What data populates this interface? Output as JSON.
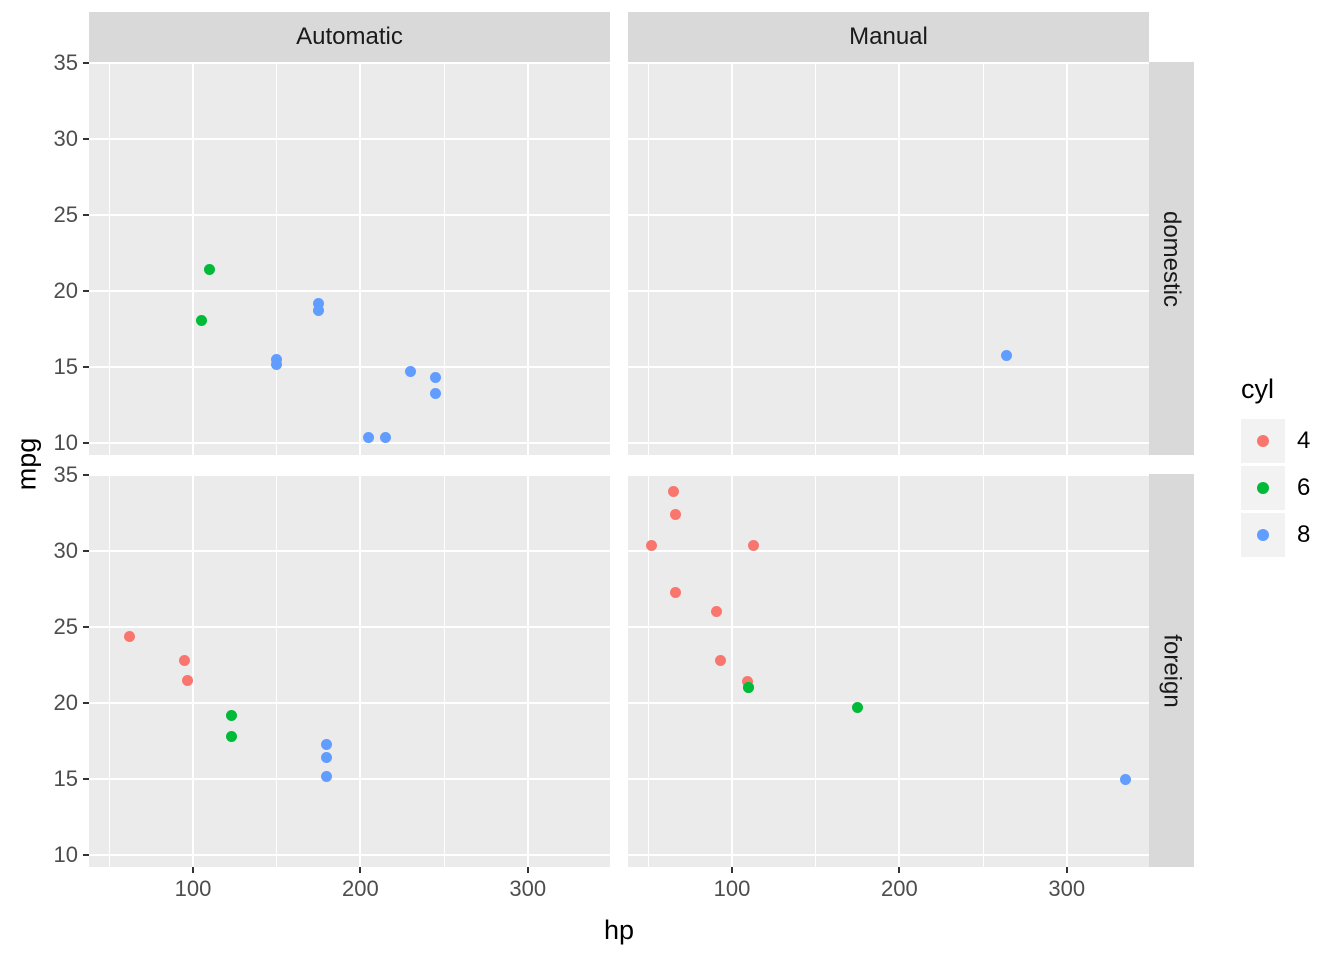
{
  "chart_data": {
    "type": "scatter",
    "title": "",
    "xlabel": "hp",
    "ylabel": "mpg",
    "facet_columns": [
      "Automatic",
      "Manual"
    ],
    "facet_rows": [
      "domestic",
      "foreign"
    ],
    "x_ticks": [
      100,
      200,
      300
    ],
    "y_ticks": [
      35,
      30,
      25,
      20,
      15,
      10
    ],
    "xlim": [
      37.85,
      349.15
    ],
    "ylim": [
      9.225,
      35.075
    ],
    "grid": "white major and minor gridlines on gray panels",
    "legend": {
      "title": "cyl",
      "position": "right",
      "entries": [
        {
          "label": "4",
          "color": "#F8766D"
        },
        {
          "label": "6",
          "color": "#00BA38"
        },
        {
          "label": "8",
          "color": "#619CFF"
        }
      ]
    },
    "points_format": [
      "hp",
      "mpg",
      "cyl"
    ],
    "facets": [
      {
        "column": "Automatic",
        "row": "domestic",
        "points": [
          [
            110,
            21.4,
            6
          ],
          [
            105,
            18.1,
            6
          ],
          [
            175,
            19.2,
            8
          ],
          [
            175,
            18.7,
            8
          ],
          [
            150,
            15.5,
            8
          ],
          [
            150,
            15.2,
            8
          ],
          [
            230,
            14.7,
            8
          ],
          [
            245,
            14.3,
            8
          ],
          [
            245,
            13.3,
            8
          ],
          [
            205,
            10.4,
            8
          ],
          [
            215,
            10.4,
            8
          ]
        ]
      },
      {
        "column": "Manual",
        "row": "domestic",
        "points": [
          [
            264,
            15.8,
            8
          ]
        ]
      },
      {
        "column": "Automatic",
        "row": "foreign",
        "points": [
          [
            62,
            24.4,
            4
          ],
          [
            95,
            22.8,
            4
          ],
          [
            97,
            21.5,
            4
          ],
          [
            123,
            19.2,
            6
          ],
          [
            123,
            17.8,
            6
          ],
          [
            180,
            17.3,
            8
          ],
          [
            180,
            16.4,
            8
          ],
          [
            180,
            15.2,
            8
          ]
        ]
      },
      {
        "column": "Manual",
        "row": "foreign",
        "points": [
          [
            65,
            33.9,
            4
          ],
          [
            66,
            32.4,
            4
          ],
          [
            52,
            30.4,
            4
          ],
          [
            113,
            30.4,
            4
          ],
          [
            66,
            27.3,
            4
          ],
          [
            91,
            26.0,
            4
          ],
          [
            93,
            22.8,
            4
          ],
          [
            109,
            21.4,
            4
          ],
          [
            110,
            21.0,
            6
          ],
          [
            110,
            21.0,
            6
          ],
          [
            175,
            19.7,
            6
          ],
          [
            335,
            15.0,
            8
          ]
        ]
      }
    ],
    "colors": {
      "panel_bg": "#EBEBEB",
      "strip_bg": "#D9D9D9",
      "gridline": "#FFFFFF",
      "tick_label": "#4D4D4D",
      "axis_title": "#000000",
      "legend_key_bg": "#F2F2F2"
    }
  }
}
